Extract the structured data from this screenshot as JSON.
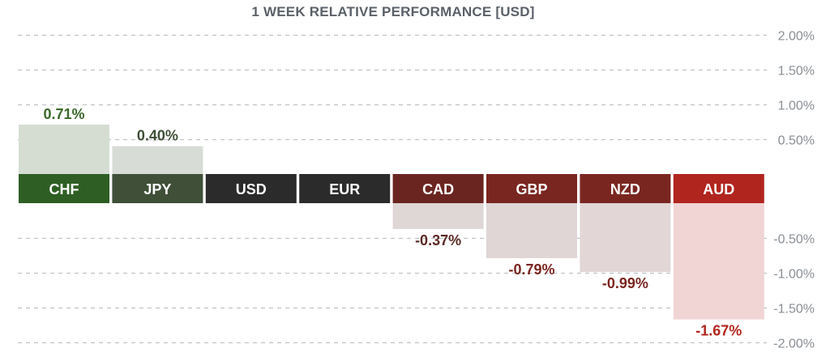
{
  "chart_data": {
    "type": "bar",
    "title": "1 WEEK RELATIVE PERFORMANCE  [USD]",
    "xlabel": "",
    "ylabel": "",
    "categories": [
      "CHF",
      "JPY",
      "USD",
      "EUR",
      "CAD",
      "GBP",
      "NZD",
      "AUD"
    ],
    "values": [
      0.71,
      0.4,
      0.0,
      0.0,
      -0.37,
      -0.79,
      -0.99,
      -1.67
    ],
    "value_labels": [
      "0.71%",
      "0.40%",
      "",
      "",
      "-0.37%",
      "-0.79%",
      "-0.99%",
      "-1.67%"
    ],
    "ylim": [
      -2.0,
      2.0
    ],
    "yticks": [
      2.0,
      1.5,
      1.0,
      0.5,
      -0.5,
      -1.0,
      -1.5,
      -2.0
    ],
    "ytick_labels": [
      "2.00%",
      "1.50%",
      "1.00%",
      "0.50%",
      "-0.50%",
      "-1.00%",
      "-1.50%",
      "-2.00%"
    ],
    "grid": true,
    "label_colors": [
      "#2e5e24",
      "#3f4f38",
      "#2b2b2b",
      "#2b2b2b",
      "#6b2520",
      "#7a2620",
      "#7a2620",
      "#b1251f"
    ],
    "bar_colors": [
      "#d5ddd3",
      "#d8dcd6",
      "#ffffff",
      "#ffffff",
      "#dfd6d6",
      "#e0d6d6",
      "#e2d6d6",
      "#f1d4d4"
    ],
    "value_text_colors": [
      "#3a6a2a",
      "#3f4f38",
      "#333333",
      "#333333",
      "#5c2a26",
      "#7a2620",
      "#7a2620",
      "#b1251f"
    ]
  }
}
